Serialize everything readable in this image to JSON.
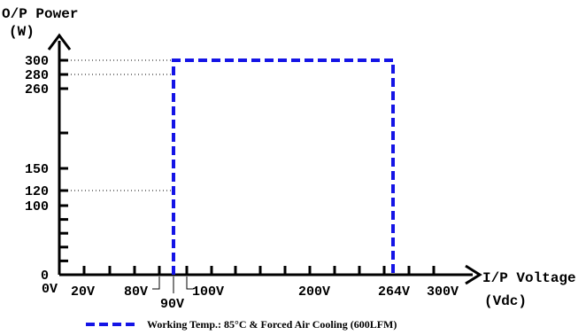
{
  "chart_data": {
    "type": "line",
    "ylabel": "O/P Power",
    "yunit": "(W)",
    "xlabel": "I/P Voltage",
    "xunit": "(Vdc)",
    "y_ticks": [
      0,
      100,
      120,
      150,
      260,
      280,
      300
    ],
    "y_minor_ticks": [
      20,
      40,
      60,
      80,
      200
    ],
    "x_ticks": [
      "0V",
      "20V",
      "80V",
      "90V",
      "100V",
      "200V",
      "264V",
      "300V"
    ],
    "series": [
      {
        "name": "Working Temp.: 85°C & Forced Air Cooling (600LFM)",
        "color": "#1414e6",
        "style": "dashed",
        "points": [
          {
            "x": "90V",
            "y": 0
          },
          {
            "x": "90V",
            "y": 300
          },
          {
            "x": "264V",
            "y": 300
          },
          {
            "x": "264V",
            "y": 0
          }
        ]
      }
    ],
    "reference_lines": [
      {
        "y": 300,
        "from": "0V",
        "to": "90V",
        "style": "dotted"
      },
      {
        "y": 280,
        "from": "0V",
        "to": "90V",
        "style": "dotted"
      },
      {
        "y": 120,
        "from": "0V",
        "to": "90V",
        "style": "dotted"
      }
    ]
  }
}
